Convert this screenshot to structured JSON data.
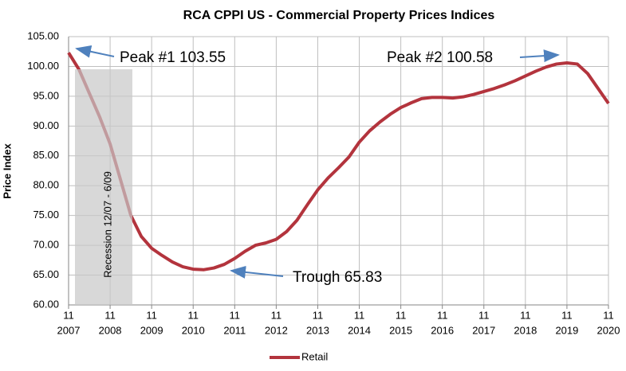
{
  "chart_data": {
    "type": "line",
    "title": "RCA CPPI US - Commercial Property Prices Indices",
    "y_label": "Price Index",
    "x": [
      "2007-11",
      "2008-02",
      "2008-05",
      "2008-08",
      "2008-11",
      "2009-02",
      "2009-05",
      "2009-08",
      "2009-11",
      "2010-02",
      "2010-05",
      "2010-08",
      "2010-11",
      "2011-02",
      "2011-05",
      "2011-08",
      "2011-11",
      "2012-02",
      "2012-05",
      "2012-08",
      "2012-11",
      "2013-02",
      "2013-05",
      "2013-08",
      "2013-11",
      "2014-02",
      "2014-05",
      "2014-08",
      "2014-11",
      "2015-02",
      "2015-05",
      "2015-08",
      "2015-11",
      "2016-02",
      "2016-05",
      "2016-08",
      "2016-11",
      "2017-02",
      "2017-05",
      "2017-08",
      "2017-11",
      "2018-02",
      "2018-05",
      "2018-08",
      "2018-11",
      "2019-02",
      "2019-05",
      "2019-08",
      "2019-11",
      "2020-02",
      "2020-05",
      "2020-08",
      "2020-11"
    ],
    "series": [
      {
        "name": "Retail",
        "color": "#b3343d",
        "values": [
          102.3,
          99.5,
          95.5,
          91.5,
          87,
          81,
          75,
          71.5,
          69.5,
          68.3,
          67.2,
          66.4,
          66.0,
          65.9,
          66.2,
          66.8,
          67.8,
          69.0,
          70.0,
          70.4,
          71.0,
          72.3,
          74.2,
          76.8,
          79.3,
          81.3,
          83.0,
          84.8,
          87.3,
          89.2,
          90.7,
          92.0,
          93.1,
          93.9,
          94.6,
          94.8,
          94.8,
          94.7,
          94.9,
          95.3,
          95.8,
          96.3,
          96.9,
          97.6,
          98.4,
          99.2,
          99.9,
          100.4,
          100.6,
          100.4,
          98.8,
          96.3,
          93.8
        ]
      }
    ],
    "xlim": [
      "2007-11",
      "2020-11"
    ],
    "xticks": [
      {
        "value": "2007-11",
        "label": [
          "11",
          "2007"
        ]
      },
      {
        "value": "2008-11",
        "label": [
          "11",
          "2008"
        ]
      },
      {
        "value": "2009-11",
        "label": [
          "11",
          "2009"
        ]
      },
      {
        "value": "2010-11",
        "label": [
          "11",
          "2010"
        ]
      },
      {
        "value": "2011-11",
        "label": [
          "11",
          "2011"
        ]
      },
      {
        "value": "2012-11",
        "label": [
          "11",
          "2012"
        ]
      },
      {
        "value": "2013-11",
        "label": [
          "11",
          "2013"
        ]
      },
      {
        "value": "2014-11",
        "label": [
          "11",
          "2014"
        ]
      },
      {
        "value": "2015-11",
        "label": [
          "11",
          "2015"
        ]
      },
      {
        "value": "2016-11",
        "label": [
          "11",
          "2016"
        ]
      },
      {
        "value": "2017-11",
        "label": [
          "11",
          "2017"
        ]
      },
      {
        "value": "2018-11",
        "label": [
          "11",
          "2018"
        ]
      },
      {
        "value": "2019-11",
        "label": [
          "11",
          "2019"
        ]
      },
      {
        "value": "2020-11",
        "label": [
          "11",
          "2020"
        ]
      }
    ],
    "ylim": [
      60,
      105
    ],
    "yticks": [
      {
        "value": 60,
        "label": "60.00"
      },
      {
        "value": 65,
        "label": "65.00"
      },
      {
        "value": 70,
        "label": "70.00"
      },
      {
        "value": 75,
        "label": "75.00"
      },
      {
        "value": 80,
        "label": "80.00"
      },
      {
        "value": 85,
        "label": "85.00"
      },
      {
        "value": 90,
        "label": "90.00"
      },
      {
        "value": 95,
        "label": "95.00"
      },
      {
        "value": 100,
        "label": "100.00"
      },
      {
        "value": 105,
        "label": "105.00"
      }
    ],
    "grid": true,
    "legend": "bottom",
    "annotations": [
      "Peak #1 103.55",
      "Peak #2 100.58",
      "Trough 65.83",
      "Recession 12/07 - 6/09"
    ]
  }
}
